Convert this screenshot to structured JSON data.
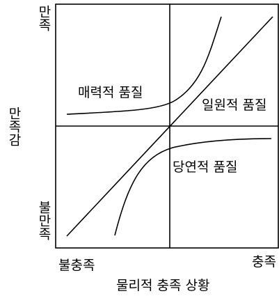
{
  "axes": {
    "y_top": "만족",
    "y_bottom": "불만족",
    "y_title": "만족감",
    "x_left": "불충족",
    "x_right": "충족",
    "x_title": "물리적 충족 상황"
  },
  "curves": {
    "attractive": "매력적 품질",
    "one_dimensional": "일원적 품질",
    "must_be": "당연적 품질"
  }
}
